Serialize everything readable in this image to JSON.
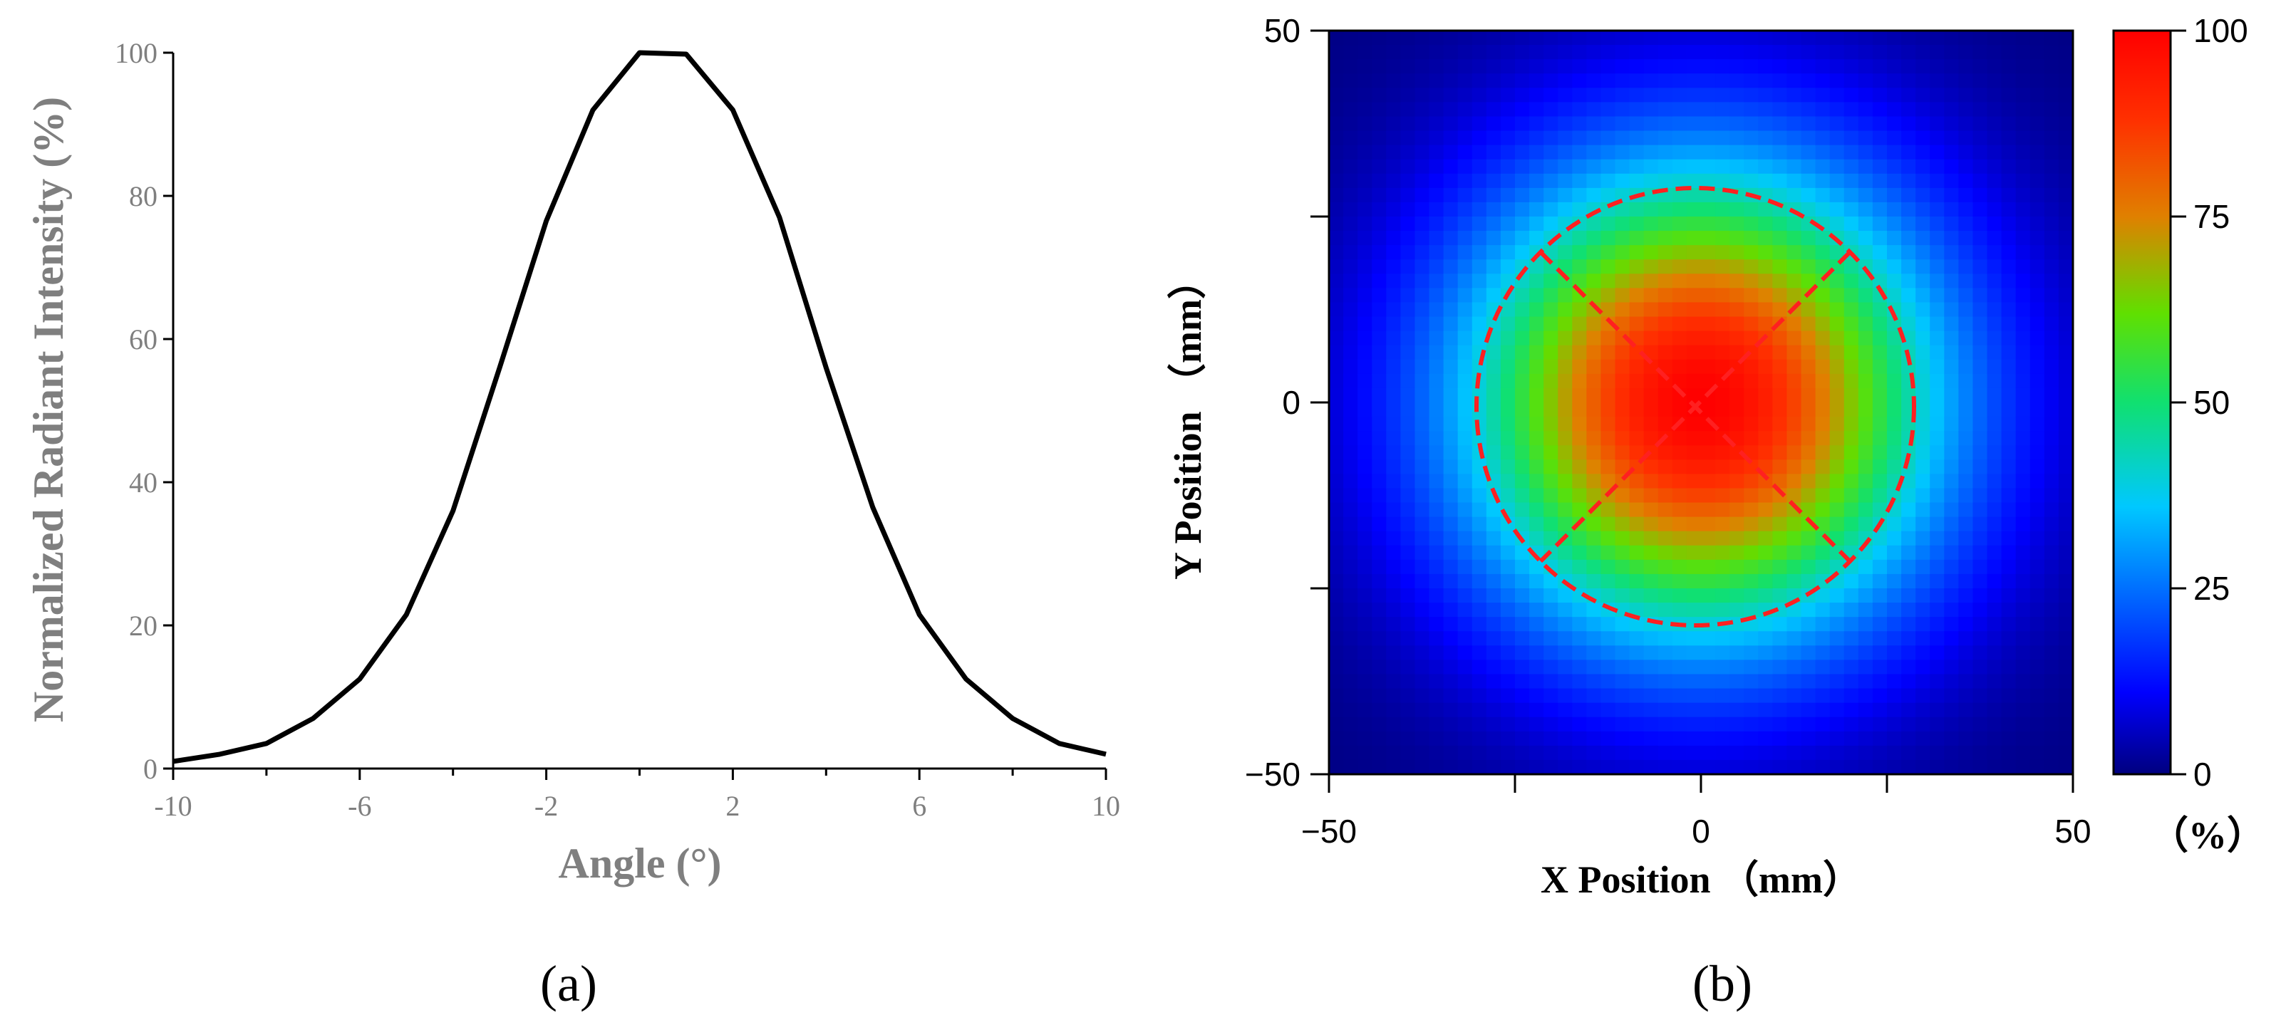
{
  "colors": {
    "line": "#000000",
    "axis_text_gray": "#7f7f7f",
    "overlay_red": "#ff2020"
  },
  "panels": {
    "a_label": "(a)",
    "b_label": "(b)"
  },
  "chart_data": [
    {
      "type": "line",
      "title": "",
      "xlabel": "Angle (°)",
      "ylabel": "Normalized Radiant Intensity (%)",
      "xlim": [
        -10,
        10
      ],
      "ylim": [
        0,
        100
      ],
      "xticks": [
        "-10",
        "-6",
        "-2",
        "2",
        "6",
        "10"
      ],
      "yticks": [
        "0",
        "20",
        "40",
        "60",
        "80",
        "100"
      ],
      "grid": false,
      "series": [
        {
          "x": [
            -10,
            -9,
            -8,
            -7,
            -6,
            -5,
            -4,
            -3,
            -2,
            -1,
            0,
            1,
            2,
            3,
            4,
            5,
            6,
            7,
            8,
            9,
            10
          ],
          "y": [
            1,
            2,
            3.5,
            7,
            12.5,
            21.5,
            36,
            56,
            76.5,
            92,
            100,
            99.8,
            92,
            77,
            56,
            36.5,
            21.5,
            12.5,
            7,
            3.5,
            2
          ]
        }
      ]
    },
    {
      "type": "heatmap",
      "title": "",
      "xlabel": "X Position （mm）",
      "ylabel": "Y Position （mm）",
      "xlim": [
        -50,
        50
      ],
      "ylim": [
        -50,
        50
      ],
      "xticks": [
        "−50",
        "0",
        "50"
      ],
      "yticks": [
        "−50",
        "0",
        "50"
      ],
      "colorbar": {
        "label": "（%）",
        "range": [
          0,
          100
        ],
        "ticks": [
          "0",
          "25",
          "50",
          "75",
          "100"
        ],
        "colormap": "jet"
      },
      "peak_percent": 100,
      "sigma_mm": 22,
      "annotation": {
        "shape": "dashed circle with crossed diagonals",
        "center_mm": [
          0,
          0
        ],
        "radius_mm": 29.5
      }
    }
  ]
}
